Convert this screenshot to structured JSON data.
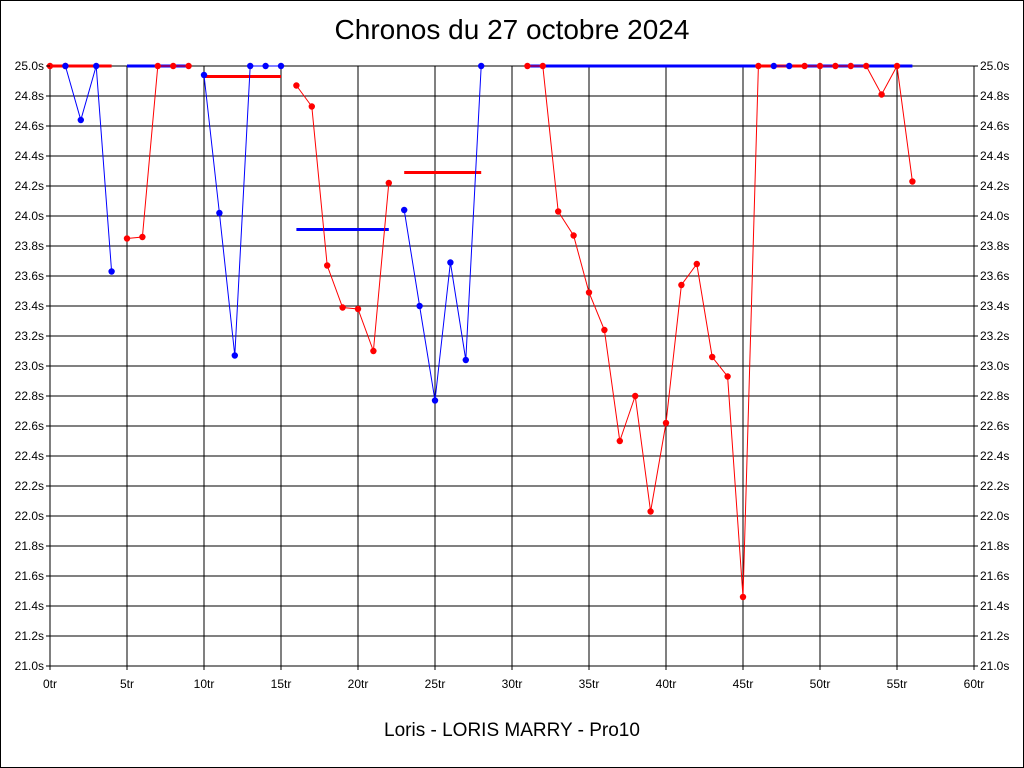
{
  "chart_data": {
    "type": "line",
    "title": "Chronos du 27 octobre 2024",
    "subtitle": "Loris - LORIS MARRY - Pro10",
    "xlim": [
      0,
      60
    ],
    "ylim": [
      21.0,
      25.0
    ],
    "x_tick_labels": [
      "0tr",
      "5tr",
      "10tr",
      "15tr",
      "20tr",
      "25tr",
      "30tr",
      "35tr",
      "40tr",
      "45tr",
      "50tr",
      "55tr",
      "60tr"
    ],
    "y_tick_labels": [
      "21.0s",
      "21.2s",
      "21.4s",
      "21.6s",
      "21.8s",
      "22.0s",
      "22.2s",
      "22.4s",
      "22.6s",
      "22.8s",
      "23.0s",
      "23.2s",
      "23.4s",
      "23.6s",
      "23.8s",
      "24.0s",
      "24.2s",
      "24.4s",
      "24.6s",
      "24.8s",
      "25.0s"
    ],
    "grid": true,
    "colors": {
      "red": "#ff0000",
      "blue": "#0000ff"
    },
    "segments": [
      {
        "color": "red",
        "x": [
          0,
          1
        ],
        "y": [
          25.0,
          25.0
        ]
      },
      {
        "color": "blue",
        "x": [
          1,
          2,
          3,
          4
        ],
        "y": [
          25.0,
          24.64,
          25.0,
          23.63
        ]
      },
      {
        "color": "red",
        "x": [
          5,
          6,
          7,
          8,
          9
        ],
        "y": [
          23.85,
          23.86,
          25.0,
          25.0,
          25.0
        ]
      },
      {
        "color": "blue",
        "x": [
          10,
          11,
          12,
          13,
          14,
          15
        ],
        "y": [
          24.94,
          24.02,
          23.07,
          25.0,
          25.0,
          25.0
        ]
      },
      {
        "color": "red",
        "x": [
          16,
          17,
          18,
          19,
          20,
          21,
          22
        ],
        "y": [
          24.87,
          24.73,
          23.67,
          23.39,
          23.38,
          23.1,
          24.22
        ]
      },
      {
        "color": "blue",
        "x": [
          23,
          24,
          25,
          26,
          27,
          28
        ],
        "y": [
          24.04,
          23.4,
          22.77,
          23.69,
          23.04,
          25.0
        ]
      },
      {
        "color": "red",
        "x": [
          31,
          32,
          33,
          34,
          35,
          36,
          37,
          38,
          39,
          40,
          41,
          42,
          43,
          44,
          45,
          46
        ],
        "y": [
          25.0,
          25.0,
          24.03,
          23.87,
          23.49,
          23.24,
          22.5,
          22.8,
          22.03,
          22.62,
          23.54,
          23.68,
          23.06,
          22.93,
          21.46,
          25.0
        ]
      },
      {
        "color": "blue",
        "x": [
          47,
          48
        ],
        "y": [
          25.0,
          25.0
        ]
      },
      {
        "color": "red",
        "x": [
          49,
          50,
          51,
          52,
          53,
          54,
          55,
          56
        ],
        "y": [
          25.0,
          25.0,
          25.0,
          25.0,
          25.0,
          24.81,
          25.0,
          24.23
        ]
      }
    ],
    "average_lines": [
      {
        "color": "red",
        "x": [
          0,
          4
        ],
        "y": 25.0
      },
      {
        "color": "blue",
        "x": [
          5,
          9
        ],
        "y": 25.0
      },
      {
        "color": "red",
        "x": [
          10,
          15
        ],
        "y": 24.93
      },
      {
        "color": "blue",
        "x": [
          16,
          22
        ],
        "y": 23.91
      },
      {
        "color": "red",
        "x": [
          23,
          28
        ],
        "y": 24.29
      },
      {
        "color": "blue",
        "x": [
          31,
          56
        ],
        "y": 25.0
      },
      {
        "color": "red",
        "x": [
          46,
          49
        ],
        "y": 25.0
      }
    ]
  }
}
